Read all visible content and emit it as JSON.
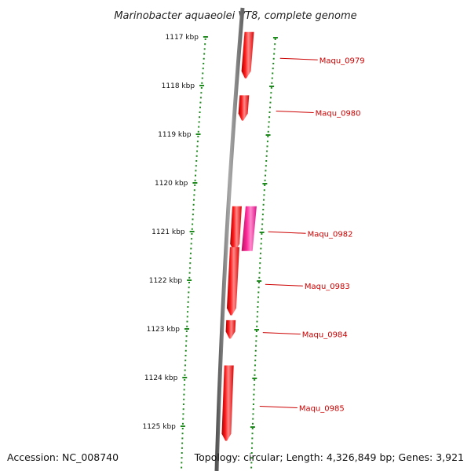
{
  "title": "Marinobacter aquaeolei VT8, complete genome",
  "footer": {
    "accession": "Accession: NC_008740",
    "topology": "Topology: circular; Length: 4,326,849 bp; Genes: 3,921"
  },
  "colors": {
    "backbone": "#808080",
    "tick": "#1e8a1e",
    "gene_forward": "#ff0000",
    "gene_reverse": "#ee1177",
    "label": "#cc0000"
  },
  "scale": {
    "unit": "kbp",
    "ticks": [
      {
        "value": 1117,
        "label": "1117 kbp"
      },
      {
        "value": 1118,
        "label": "1118 kbp"
      },
      {
        "value": 1119,
        "label": "1119 kbp"
      },
      {
        "value": 1120,
        "label": "1120 kbp"
      },
      {
        "value": 1121,
        "label": "1121 kbp"
      },
      {
        "value": 1122,
        "label": "1122 kbp"
      },
      {
        "value": 1123,
        "label": "1123 kbp"
      },
      {
        "value": 1124,
        "label": "1124 kbp"
      },
      {
        "value": 1125,
        "label": "1125 kbp"
      }
    ]
  },
  "genes": [
    {
      "label": "Maqu_0979",
      "start_kbp": 1116.9,
      "end_kbp": 1117.85,
      "strand": "forward"
    },
    {
      "label": "Maqu_0980",
      "start_kbp": 1118.2,
      "end_kbp": 1118.72,
      "strand": "forward"
    },
    {
      "label": "Maqu_0982",
      "start_kbp": 1120.48,
      "end_kbp": 1121.4,
      "strand": "forward",
      "extra_strand": "reverse"
    },
    {
      "label": "Maqu_0983",
      "start_kbp": 1121.32,
      "end_kbp": 1122.72,
      "strand": "forward"
    },
    {
      "label": "Maqu_0984",
      "start_kbp": 1122.82,
      "end_kbp": 1123.2,
      "strand": "forward"
    },
    {
      "label": "Maqu_0985",
      "start_kbp": 1123.75,
      "end_kbp": 1125.3,
      "strand": "forward"
    }
  ]
}
